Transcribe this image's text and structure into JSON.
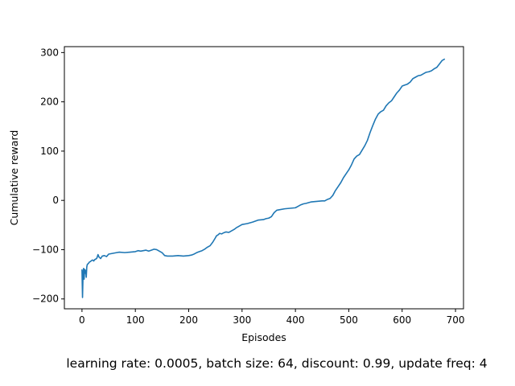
{
  "chart_data": {
    "type": "line",
    "title": "",
    "xlabel": "Episodes",
    "ylabel": "Cumulative reward",
    "caption": "learning rate: 0.0005, batch size: 64, discount: 0.99, update freq: 4",
    "xlim": [
      -33,
      715
    ],
    "ylim": [
      -220,
      312
    ],
    "xticks": [
      0,
      100,
      200,
      300,
      400,
      500,
      600,
      700
    ],
    "yticks": [
      -200,
      -100,
      0,
      100,
      200,
      300
    ],
    "xtick_labels": [
      "0",
      "100",
      "200",
      "300",
      "400",
      "500",
      "600",
      "700"
    ],
    "ytick_labels": [
      "−200",
      "−100",
      "0",
      "100",
      "200",
      "300"
    ],
    "grid": false,
    "series_color": "#1f77b4",
    "series": [
      {
        "name": "",
        "points": [
          [
            0,
            -140
          ],
          [
            1,
            -197
          ],
          [
            2,
            -150
          ],
          [
            3,
            -138
          ],
          [
            4,
            -160
          ],
          [
            5,
            -140
          ],
          [
            6,
            -148
          ],
          [
            7,
            -142
          ],
          [
            8,
            -156
          ],
          [
            9,
            -135
          ],
          [
            10,
            -130
          ],
          [
            12,
            -128
          ],
          [
            14,
            -125
          ],
          [
            16,
            -124
          ],
          [
            18,
            -122
          ],
          [
            20,
            -121
          ],
          [
            22,
            -123
          ],
          [
            24,
            -120
          ],
          [
            26,
            -119
          ],
          [
            28,
            -117
          ],
          [
            30,
            -110
          ],
          [
            32,
            -115
          ],
          [
            35,
            -118
          ],
          [
            38,
            -113
          ],
          [
            42,
            -112
          ],
          [
            46,
            -114
          ],
          [
            50,
            -109
          ],
          [
            55,
            -108
          ],
          [
            60,
            -107
          ],
          [
            65,
            -106
          ],
          [
            70,
            -105
          ],
          [
            80,
            -106
          ],
          [
            90,
            -105
          ],
          [
            100,
            -104
          ],
          [
            105,
            -102
          ],
          [
            110,
            -103
          ],
          [
            115,
            -102
          ],
          [
            120,
            -101
          ],
          [
            125,
            -103
          ],
          [
            130,
            -101
          ],
          [
            135,
            -99
          ],
          [
            140,
            -100
          ],
          [
            145,
            -103
          ],
          [
            150,
            -106
          ],
          [
            155,
            -112
          ],
          [
            160,
            -113
          ],
          [
            170,
            -113
          ],
          [
            180,
            -112
          ],
          [
            190,
            -113
          ],
          [
            200,
            -112
          ],
          [
            205,
            -111
          ],
          [
            210,
            -109
          ],
          [
            215,
            -106
          ],
          [
            220,
            -104
          ],
          [
            225,
            -102
          ],
          [
            230,
            -99
          ],
          [
            235,
            -95
          ],
          [
            240,
            -92
          ],
          [
            245,
            -85
          ],
          [
            250,
            -76
          ],
          [
            252,
            -72
          ],
          [
            255,
            -70
          ],
          [
            258,
            -67
          ],
          [
            262,
            -68
          ],
          [
            265,
            -66
          ],
          [
            270,
            -64
          ],
          [
            275,
            -65
          ],
          [
            280,
            -62
          ],
          [
            285,
            -59
          ],
          [
            290,
            -55
          ],
          [
            295,
            -52
          ],
          [
            300,
            -49
          ],
          [
            310,
            -47
          ],
          [
            320,
            -44
          ],
          [
            330,
            -40
          ],
          [
            340,
            -39
          ],
          [
            345,
            -37
          ],
          [
            350,
            -36
          ],
          [
            355,
            -33
          ],
          [
            360,
            -25
          ],
          [
            365,
            -20
          ],
          [
            370,
            -19
          ],
          [
            380,
            -17
          ],
          [
            390,
            -16
          ],
          [
            400,
            -15
          ],
          [
            405,
            -12
          ],
          [
            410,
            -9
          ],
          [
            415,
            -7
          ],
          [
            420,
            -6
          ],
          [
            430,
            -3
          ],
          [
            440,
            -2
          ],
          [
            450,
            -1
          ],
          [
            455,
            -1
          ],
          [
            460,
            2
          ],
          [
            465,
            4
          ],
          [
            470,
            10
          ],
          [
            475,
            20
          ],
          [
            480,
            28
          ],
          [
            485,
            36
          ],
          [
            490,
            46
          ],
          [
            495,
            54
          ],
          [
            500,
            62
          ],
          [
            505,
            72
          ],
          [
            510,
            84
          ],
          [
            515,
            90
          ],
          [
            520,
            93
          ],
          [
            525,
            102
          ],
          [
            530,
            111
          ],
          [
            535,
            122
          ],
          [
            540,
            138
          ],
          [
            545,
            152
          ],
          [
            550,
            165
          ],
          [
            555,
            175
          ],
          [
            560,
            180
          ],
          [
            565,
            183
          ],
          [
            570,
            192
          ],
          [
            575,
            198
          ],
          [
            580,
            202
          ],
          [
            585,
            210
          ],
          [
            590,
            218
          ],
          [
            595,
            224
          ],
          [
            600,
            232
          ],
          [
            605,
            234
          ],
          [
            610,
            236
          ],
          [
            615,
            240
          ],
          [
            620,
            247
          ],
          [
            625,
            250
          ],
          [
            630,
            253
          ],
          [
            635,
            254
          ],
          [
            640,
            257
          ],
          [
            645,
            260
          ],
          [
            650,
            261
          ],
          [
            655,
            263
          ],
          [
            660,
            267
          ],
          [
            665,
            270
          ],
          [
            670,
            277
          ],
          [
            675,
            284
          ],
          [
            680,
            287
          ]
        ]
      }
    ]
  }
}
